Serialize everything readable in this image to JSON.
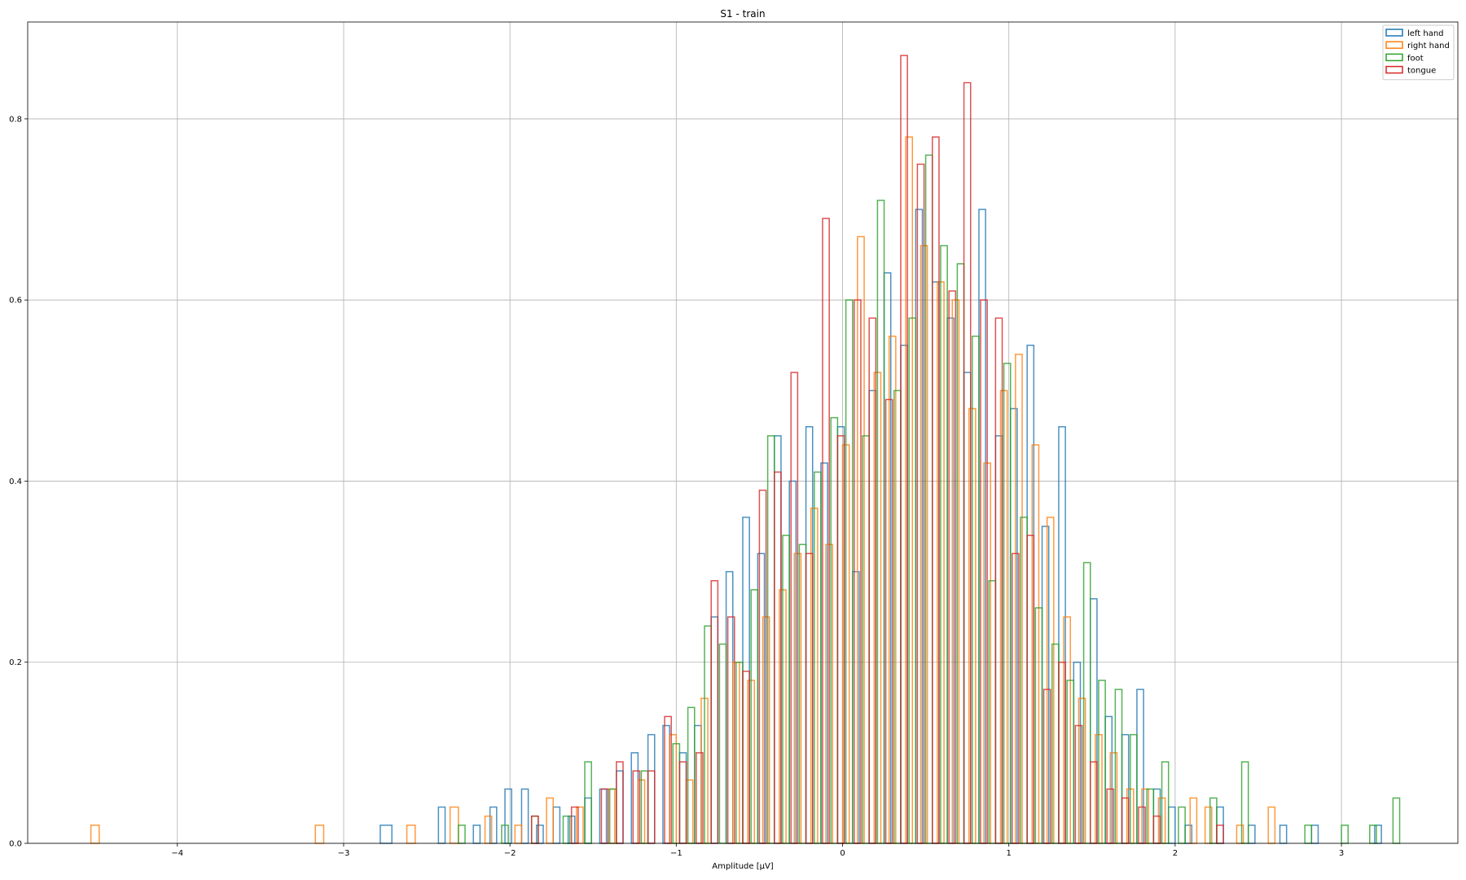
{
  "chart_data": {
    "type": "histogram",
    "title": "S1 - train",
    "xlabel": "Amplitude [μV]",
    "ylabel": "",
    "xlim": [
      -4.9,
      3.7
    ],
    "ylim": [
      0,
      0.907
    ],
    "x_ticks": [
      -4,
      -3,
      -2,
      -1,
      0,
      1,
      2,
      3
    ],
    "x_tick_labels": [
      "−4",
      "−3",
      "−2",
      "−1",
      "0",
      "1",
      "2",
      "3"
    ],
    "y_ticks": [
      0.0,
      0.2,
      0.4,
      0.6,
      0.8
    ],
    "y_tick_labels": [
      "0.0",
      "0.2",
      "0.4",
      "0.6",
      "0.8"
    ],
    "grid": true,
    "legend_position": "top-right",
    "series": [
      {
        "name": "left hand",
        "color": "#1f77b4",
        "bins": [
          [
            -2.78,
            -2.71,
            0.02
          ],
          [
            -2.43,
            -2.39,
            0.04
          ],
          [
            -2.22,
            -2.18,
            0.02
          ],
          [
            -2.12,
            -2.08,
            0.04
          ],
          [
            -2.03,
            -1.99,
            0.06
          ],
          [
            -1.93,
            -1.89,
            0.06
          ],
          [
            -1.84,
            -1.8,
            0.02
          ],
          [
            -1.74,
            -1.7,
            0.04
          ],
          [
            -1.65,
            -1.61,
            0.03
          ],
          [
            -1.55,
            -1.51,
            0.05
          ],
          [
            -1.46,
            -1.42,
            0.06
          ],
          [
            -1.36,
            -1.32,
            0.08
          ],
          [
            -1.27,
            -1.23,
            0.1
          ],
          [
            -1.17,
            -1.13,
            0.12
          ],
          [
            -1.08,
            -1.04,
            0.13
          ],
          [
            -0.98,
            -0.94,
            0.1
          ],
          [
            -0.89,
            -0.85,
            0.13
          ],
          [
            -0.79,
            -0.75,
            0.25
          ],
          [
            -0.7,
            -0.66,
            0.3
          ],
          [
            -0.6,
            -0.56,
            0.36
          ],
          [
            -0.51,
            -0.47,
            0.32
          ],
          [
            -0.41,
            -0.37,
            0.45
          ],
          [
            -0.32,
            -0.28,
            0.4
          ],
          [
            -0.22,
            -0.18,
            0.46
          ],
          [
            -0.13,
            -0.09,
            0.42
          ],
          [
            -0.03,
            0.01,
            0.46
          ],
          [
            0.06,
            0.1,
            0.3
          ],
          [
            0.16,
            0.2,
            0.5
          ],
          [
            0.25,
            0.29,
            0.63
          ],
          [
            0.35,
            0.39,
            0.55
          ],
          [
            0.44,
            0.48,
            0.7
          ],
          [
            0.54,
            0.58,
            0.62
          ],
          [
            0.63,
            0.67,
            0.58
          ],
          [
            0.73,
            0.77,
            0.52
          ],
          [
            0.82,
            0.86,
            0.7
          ],
          [
            0.92,
            0.96,
            0.45
          ],
          [
            1.01,
            1.05,
            0.48
          ],
          [
            1.11,
            1.15,
            0.55
          ],
          [
            1.2,
            1.24,
            0.35
          ],
          [
            1.3,
            1.34,
            0.46
          ],
          [
            1.39,
            1.43,
            0.2
          ],
          [
            1.49,
            1.53,
            0.27
          ],
          [
            1.58,
            1.62,
            0.14
          ],
          [
            1.68,
            1.72,
            0.12
          ],
          [
            1.77,
            1.81,
            0.17
          ],
          [
            1.87,
            1.91,
            0.06
          ],
          [
            1.96,
            2.0,
            0.04
          ],
          [
            2.06,
            2.1,
            0.02
          ],
          [
            2.25,
            2.29,
            0.04
          ],
          [
            2.44,
            2.48,
            0.02
          ],
          [
            2.63,
            2.67,
            0.02
          ],
          [
            2.82,
            2.86,
            0.02
          ],
          [
            3.2,
            3.24,
            0.02
          ]
        ]
      },
      {
        "name": "right hand",
        "color": "#ff7f0e",
        "bins": [
          [
            -4.52,
            -4.47,
            0.02
          ],
          [
            -3.17,
            -3.12,
            0.02
          ],
          [
            -2.62,
            -2.57,
            0.02
          ],
          [
            -2.36,
            -2.31,
            0.04
          ],
          [
            -2.15,
            -2.11,
            0.03
          ],
          [
            -1.97,
            -1.93,
            0.02
          ],
          [
            -1.78,
            -1.74,
            0.05
          ],
          [
            -1.6,
            -1.56,
            0.04
          ],
          [
            -1.41,
            -1.37,
            0.06
          ],
          [
            -1.23,
            -1.19,
            0.07
          ],
          [
            -1.04,
            -1.0,
            0.12
          ],
          [
            -0.94,
            -0.9,
            0.07
          ],
          [
            -0.85,
            -0.81,
            0.16
          ],
          [
            -0.66,
            -0.62,
            0.2
          ],
          [
            -0.57,
            -0.53,
            0.18
          ],
          [
            -0.48,
            -0.44,
            0.25
          ],
          [
            -0.38,
            -0.34,
            0.28
          ],
          [
            -0.29,
            -0.25,
            0.32
          ],
          [
            -0.19,
            -0.15,
            0.37
          ],
          [
            -0.1,
            -0.06,
            0.33
          ],
          [
            0.0,
            0.04,
            0.44
          ],
          [
            0.09,
            0.13,
            0.67
          ],
          [
            0.19,
            0.23,
            0.52
          ],
          [
            0.28,
            0.32,
            0.56
          ],
          [
            0.38,
            0.42,
            0.78
          ],
          [
            0.47,
            0.51,
            0.66
          ],
          [
            0.57,
            0.61,
            0.62
          ],
          [
            0.66,
            0.7,
            0.6
          ],
          [
            0.76,
            0.8,
            0.48
          ],
          [
            0.85,
            0.89,
            0.42
          ],
          [
            0.95,
            0.99,
            0.5
          ],
          [
            1.04,
            1.08,
            0.54
          ],
          [
            1.14,
            1.18,
            0.44
          ],
          [
            1.23,
            1.27,
            0.36
          ],
          [
            1.33,
            1.37,
            0.25
          ],
          [
            1.42,
            1.46,
            0.16
          ],
          [
            1.52,
            1.56,
            0.12
          ],
          [
            1.61,
            1.65,
            0.1
          ],
          [
            1.71,
            1.75,
            0.06
          ],
          [
            1.8,
            1.84,
            0.06
          ],
          [
            1.9,
            1.94,
            0.05
          ],
          [
            2.09,
            2.13,
            0.05
          ],
          [
            2.18,
            2.22,
            0.04
          ],
          [
            2.37,
            2.41,
            0.02
          ],
          [
            2.56,
            2.6,
            0.04
          ]
        ]
      },
      {
        "name": "foot",
        "color": "#2ca02c",
        "bins": [
          [
            -2.31,
            -2.27,
            0.02
          ],
          [
            -2.05,
            -2.01,
            0.02
          ],
          [
            -1.87,
            -1.83,
            0.03
          ],
          [
            -1.68,
            -1.64,
            0.03
          ],
          [
            -1.55,
            -1.51,
            0.09
          ],
          [
            -1.4,
            -1.36,
            0.06
          ],
          [
            -1.21,
            -1.17,
            0.08
          ],
          [
            -1.02,
            -0.98,
            0.11
          ],
          [
            -0.93,
            -0.89,
            0.15
          ],
          [
            -0.83,
            -0.79,
            0.24
          ],
          [
            -0.74,
            -0.7,
            0.22
          ],
          [
            -0.64,
            -0.6,
            0.2
          ],
          [
            -0.55,
            -0.51,
            0.28
          ],
          [
            -0.45,
            -0.41,
            0.45
          ],
          [
            -0.36,
            -0.32,
            0.34
          ],
          [
            -0.26,
            -0.22,
            0.33
          ],
          [
            -0.17,
            -0.13,
            0.41
          ],
          [
            -0.07,
            -0.03,
            0.47
          ],
          [
            0.02,
            0.06,
            0.6
          ],
          [
            0.12,
            0.16,
            0.45
          ],
          [
            0.21,
            0.25,
            0.71
          ],
          [
            0.31,
            0.35,
            0.5
          ],
          [
            0.4,
            0.44,
            0.58
          ],
          [
            0.5,
            0.54,
            0.76
          ],
          [
            0.59,
            0.63,
            0.66
          ],
          [
            0.69,
            0.73,
            0.64
          ],
          [
            0.78,
            0.82,
            0.56
          ],
          [
            0.88,
            0.92,
            0.29
          ],
          [
            0.97,
            1.01,
            0.53
          ],
          [
            1.07,
            1.11,
            0.36
          ],
          [
            1.16,
            1.2,
            0.26
          ],
          [
            1.26,
            1.3,
            0.22
          ],
          [
            1.35,
            1.39,
            0.18
          ],
          [
            1.45,
            1.49,
            0.31
          ],
          [
            1.54,
            1.58,
            0.18
          ],
          [
            1.64,
            1.68,
            0.17
          ],
          [
            1.73,
            1.77,
            0.12
          ],
          [
            1.83,
            1.87,
            0.06
          ],
          [
            1.92,
            1.96,
            0.09
          ],
          [
            2.02,
            2.06,
            0.04
          ],
          [
            2.21,
            2.25,
            0.05
          ],
          [
            2.4,
            2.44,
            0.09
          ],
          [
            2.78,
            2.82,
            0.02
          ],
          [
            3.0,
            3.04,
            0.02
          ],
          [
            3.17,
            3.21,
            0.02
          ],
          [
            3.31,
            3.35,
            0.05
          ]
        ]
      },
      {
        "name": "tongue",
        "color": "#d62728",
        "bins": [
          [
            -1.87,
            -1.83,
            0.03
          ],
          [
            -1.63,
            -1.59,
            0.04
          ],
          [
            -1.45,
            -1.41,
            0.06
          ],
          [
            -1.36,
            -1.32,
            0.09
          ],
          [
            -1.26,
            -1.22,
            0.08
          ],
          [
            -1.17,
            -1.13,
            0.08
          ],
          [
            -1.07,
            -1.03,
            0.14
          ],
          [
            -0.98,
            -0.94,
            0.09
          ],
          [
            -0.88,
            -0.84,
            0.1
          ],
          [
            -0.79,
            -0.75,
            0.29
          ],
          [
            -0.69,
            -0.65,
            0.25
          ],
          [
            -0.6,
            -0.56,
            0.19
          ],
          [
            -0.5,
            -0.46,
            0.39
          ],
          [
            -0.41,
            -0.37,
            0.41
          ],
          [
            -0.31,
            -0.27,
            0.52
          ],
          [
            -0.22,
            -0.18,
            0.32
          ],
          [
            -0.12,
            -0.08,
            0.69
          ],
          [
            -0.03,
            0.01,
            0.45
          ],
          [
            0.07,
            0.11,
            0.6
          ],
          [
            0.16,
            0.2,
            0.58
          ],
          [
            0.26,
            0.3,
            0.49
          ],
          [
            0.35,
            0.39,
            0.87
          ],
          [
            0.45,
            0.49,
            0.75
          ],
          [
            0.54,
            0.58,
            0.78
          ],
          [
            0.64,
            0.68,
            0.61
          ],
          [
            0.73,
            0.77,
            0.84
          ],
          [
            0.83,
            0.87,
            0.6
          ],
          [
            0.92,
            0.96,
            0.58
          ],
          [
            1.02,
            1.06,
            0.32
          ],
          [
            1.11,
            1.15,
            0.34
          ],
          [
            1.21,
            1.25,
            0.17
          ],
          [
            1.3,
            1.34,
            0.2
          ],
          [
            1.4,
            1.44,
            0.13
          ],
          [
            1.49,
            1.53,
            0.09
          ],
          [
            1.59,
            1.63,
            0.06
          ],
          [
            1.68,
            1.72,
            0.05
          ],
          [
            1.78,
            1.82,
            0.04
          ],
          [
            1.87,
            1.91,
            0.03
          ],
          [
            2.25,
            2.29,
            0.02
          ]
        ]
      }
    ]
  }
}
